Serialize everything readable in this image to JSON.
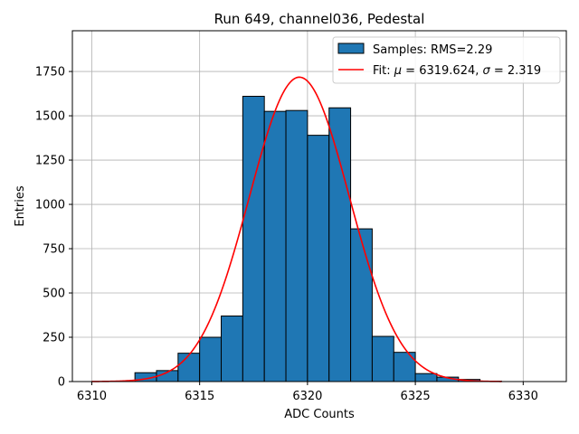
{
  "chart_data": {
    "type": "bar",
    "title": "Run 649, channel036, Pedestal",
    "xlabel": "ADC Counts",
    "ylabel": "Entries",
    "xlim": [
      6309.1,
      6332.0
    ],
    "ylim": [
      0,
      1980
    ],
    "xticks": [
      6310,
      6315,
      6320,
      6325,
      6330
    ],
    "yticks": [
      0,
      250,
      500,
      750,
      1000,
      1250,
      1500,
      1750
    ],
    "grid": true,
    "legend_position": "top-right",
    "histogram": {
      "label": "Samples: RMS=2.29",
      "color": "#1f77b4",
      "edge_color": "#000000",
      "bin_edges": [
        6312,
        6313,
        6314,
        6315,
        6316,
        6317,
        6318,
        6319,
        6320,
        6321,
        6322,
        6323,
        6324,
        6325,
        6326,
        6327,
        6328,
        6329
      ],
      "counts": [
        50,
        62,
        160,
        250,
        370,
        1610,
        1525,
        1530,
        1390,
        1545,
        862,
        255,
        165,
        45,
        25,
        12,
        2
      ]
    },
    "fit": {
      "label": "Fit: μ = 6319.624, σ = 2.319",
      "label_parts": {
        "prefix": "Fit: ",
        "mu_symbol": "μ",
        "mu_text": " = 6319.624, ",
        "sigma_symbol": "σ",
        "sigma_text": " = 2.319"
      },
      "color": "#ff0000",
      "mu": 6319.624,
      "sigma": 2.319,
      "amplitude": 1718,
      "x_range": [
        6310,
        6329
      ]
    }
  }
}
